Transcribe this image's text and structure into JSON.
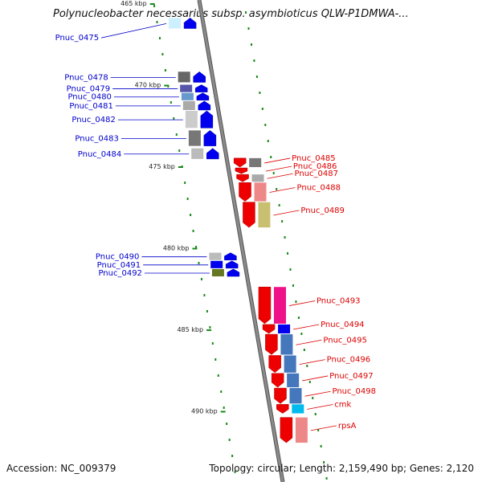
{
  "header": {
    "title": "Polynucleobacter necessarius subsp. asymbioticus QLW-P1DMWA-..."
  },
  "footer": {
    "accession": "Accession: NC_009379",
    "topology": "Topology: circular; Length: 2,159,490 bp; Genes: 2,120"
  },
  "colors": {
    "backbone": "#8a8a8a",
    "left_strand_gene": "#0000ee",
    "right_strand_gene": "#ee0000",
    "left_label": "#0000cc",
    "right_label": "#dd0000",
    "tick": "#1a8a1a"
  },
  "scale_labels": [
    {
      "text": "465 kbp",
      "pos": 465
    },
    {
      "text": "470 kbp",
      "pos": 470
    },
    {
      "text": "475 kbp",
      "pos": 475
    },
    {
      "text": "480 kbp",
      "pos": 480
    },
    {
      "text": "485 kbp",
      "pos": 485
    },
    {
      "text": "490 kbp",
      "pos": 490
    }
  ],
  "genes_left": [
    {
      "name": "Pnuc_0475",
      "start": 465.9,
      "end": 466.6,
      "cog": "#ccf0ff"
    },
    {
      "name": "Pnuc_0478",
      "start": 469.2,
      "end": 469.9,
      "cog": "#666666"
    },
    {
      "name": "Pnuc_0479",
      "start": 470.0,
      "end": 470.5,
      "cog": "#5555aa"
    },
    {
      "name": "Pnuc_0480",
      "start": 470.5,
      "end": 471.0,
      "cog": "#6699cc"
    },
    {
      "name": "Pnuc_0481",
      "start": 471.0,
      "end": 471.6,
      "cog": "#aaaaaa"
    },
    {
      "name": "Pnuc_0482",
      "start": 471.6,
      "end": 472.7,
      "cog": "#cccccc"
    },
    {
      "name": "Pnuc_0483",
      "start": 472.8,
      "end": 473.8,
      "cog": "#777777"
    },
    {
      "name": "Pnuc_0484",
      "start": 473.9,
      "end": 474.6,
      "cog": "#bbbbbb"
    },
    {
      "name": "Pnuc_0490",
      "start": 480.3,
      "end": 480.8,
      "cog": "#bbbbbb"
    },
    {
      "name": "Pnuc_0491",
      "start": 480.8,
      "end": 481.3,
      "cog": "#0000ee"
    },
    {
      "name": "Pnuc_0492",
      "start": 481.3,
      "end": 481.8,
      "cog": "#667722"
    }
  ],
  "genes_right": [
    {
      "name": "Pnuc_0485",
      "start": 474.5,
      "end": 475.1,
      "cog": "#777777"
    },
    {
      "name": "Pnuc_0486",
      "start": 475.1,
      "end": 475.5,
      "cog": ""
    },
    {
      "name": "Pnuc_0487",
      "start": 475.5,
      "end": 476.0,
      "cog": "#aaaaaa"
    },
    {
      "name": "Pnuc_0488",
      "start": 476.0,
      "end": 477.2,
      "cog": "#ee8888"
    },
    {
      "name": "Pnuc_0489",
      "start": 477.2,
      "end": 478.8,
      "cog": "#c8c070"
    },
    {
      "name": "Pnuc_0493",
      "start": 482.4,
      "end": 484.7,
      "cog": "#ee1188"
    },
    {
      "name": "Pnuc_0494",
      "start": 484.7,
      "end": 485.3,
      "cog": "#0000ee"
    },
    {
      "name": "Pnuc_0495",
      "start": 485.3,
      "end": 486.6,
      "cog": "#4477bb"
    },
    {
      "name": "Pnuc_0496",
      "start": 486.6,
      "end": 487.7,
      "cog": "#4477bb"
    },
    {
      "name": "Pnuc_0497",
      "start": 487.7,
      "end": 488.6,
      "cog": "#4477bb"
    },
    {
      "name": "Pnuc_0498",
      "start": 488.6,
      "end": 489.6,
      "cog": "#4477bb"
    },
    {
      "name": "cmk",
      "start": 489.6,
      "end": 490.2,
      "cog": "#00bbee"
    },
    {
      "name": "rpsA",
      "start": 490.4,
      "end": 492.0,
      "cog": "#ee8888"
    }
  ]
}
